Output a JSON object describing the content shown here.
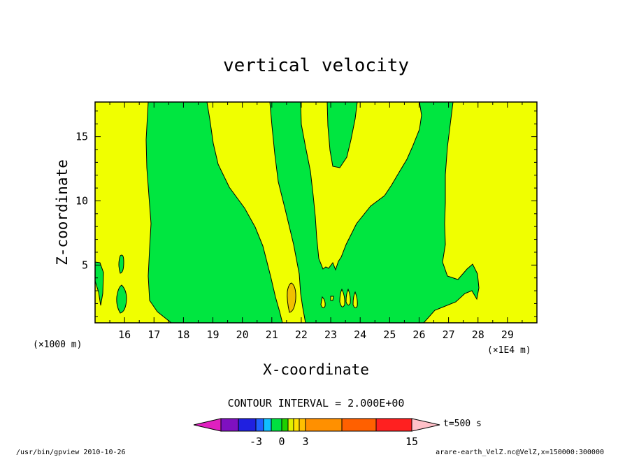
{
  "chart_data": {
    "type": "heatmap",
    "title": "vertical velocity",
    "xlabel": "X-coordinate",
    "ylabel": "Z-coordinate",
    "x_unit_left": "(×1000 m)",
    "x_unit_right": "(×1E4 m)",
    "x_ticks": [
      "16",
      "17",
      "18",
      "19",
      "20",
      "21",
      "22",
      "23",
      "24",
      "25",
      "26",
      "27",
      "28",
      "29"
    ],
    "x_tick_values": [
      16,
      17,
      18,
      19,
      20,
      21,
      22,
      23,
      24,
      25,
      26,
      27,
      28,
      29
    ],
    "y_ticks": [
      "5",
      "10",
      "15"
    ],
    "y_tick_values": [
      5,
      10,
      15
    ],
    "xlim": [
      15,
      30
    ],
    "ylim": [
      0.5,
      17.7
    ],
    "contour_interval_text": "CONTOUR INTERVAL = 2.000E+00",
    "time_label": "t=500 s",
    "colorbar": {
      "colors": [
        "#e020c0",
        "#7f10c0",
        "#2020e0",
        "#2060ff",
        "#10c0ff",
        "#00e040",
        "#20d000",
        "#e0f000",
        "#ffe000",
        "#ffc000",
        "#ff9000",
        "#ff6000",
        "#ff2020",
        "#ff7878",
        "#ffc0c8"
      ],
      "labels": [
        "-3",
        "0",
        "3",
        "15"
      ]
    },
    "field_colors": {
      "background": "#f0ff00",
      "positive_regions": "#00e640",
      "core": "#f0c000"
    },
    "footer_left": "/usr/bin/gpview  2010-10-26",
    "footer_right": "arare-earth_VelZ.nc@VelZ,x=150000:300000"
  }
}
